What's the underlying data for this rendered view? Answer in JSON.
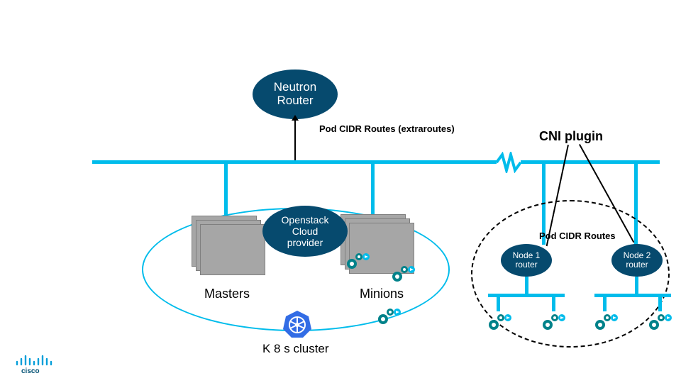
{
  "colors": {
    "cyan": "#00bceb",
    "dark_navy": "#064a6e",
    "gray_fill": "#a6a6a6",
    "gray_border": "#7f7f7f",
    "black": "#000000",
    "white": "#ffffff",
    "teal_dark": "#00828a",
    "k8s_blue": "#326ce5"
  },
  "neutron": {
    "label": "Neutron\nRouter"
  },
  "labels": {
    "pod_cidr_extra": "Pod CIDR Routes (extraroutes)",
    "cni_plugin": "CNI plugin",
    "pod_cidr_routes": "Pod CIDR Routes",
    "masters": "Masters",
    "minions": "Minions",
    "k8s_cluster": "K 8 s cluster"
  },
  "openstack": {
    "label": "Openstack\nCloud\nprovider"
  },
  "node_routers": [
    {
      "label": "Node 1\nrouter"
    },
    {
      "label": "Node 2\nrouter"
    }
  ],
  "logo": {
    "name": "cisco"
  }
}
